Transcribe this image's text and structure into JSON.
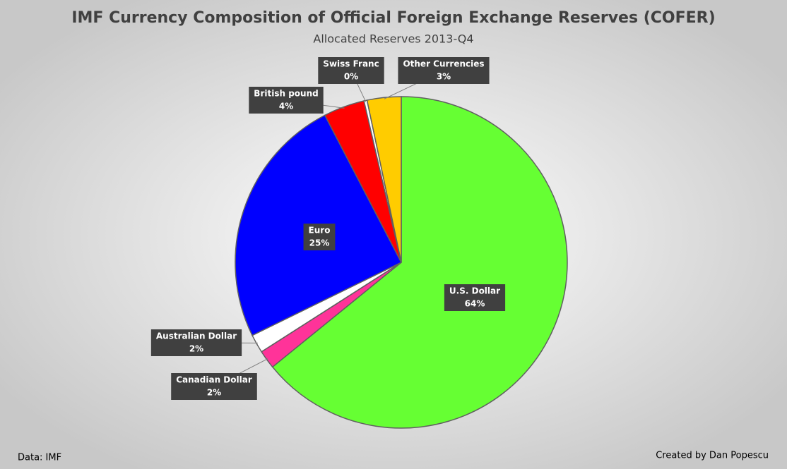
{
  "chart_data": {
    "type": "pie",
    "title": "IMF Currency Composition of Official Foreign Exchange Reserves (COFER)",
    "subtitle": "Allocated Reserves 2013-Q4",
    "categories": [
      "U.S. Dollar",
      "Canadian Dollar",
      "Australian Dollar",
      "Euro",
      "British pound",
      "Swiss Franc",
      "Other Currencies"
    ],
    "values": [
      64,
      1.8,
      1.8,
      24.6,
      4.0,
      0.3,
      3.3
    ],
    "value_labels": [
      "64%",
      "2%",
      "2%",
      "25%",
      "4%",
      "0%",
      "3%"
    ],
    "colors": [
      "#66ff33",
      "#ff3399",
      "#ffffff",
      "#0000ff",
      "#ff0000",
      "#ffffff",
      "#ffcc00"
    ],
    "source": "Data: IMF",
    "credit": "Created by Dan Popescu"
  }
}
